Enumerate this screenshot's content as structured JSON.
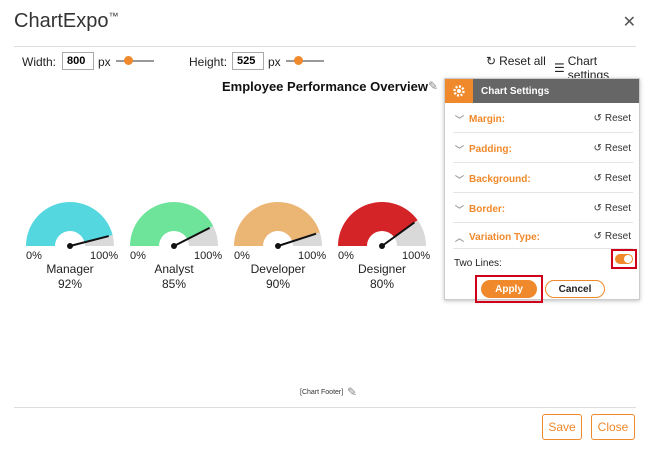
{
  "app": {
    "title": "ChartExpo",
    "trademark": "™"
  },
  "toolbar": {
    "width_label": "Width:",
    "width_value": "800",
    "width_unit": "px",
    "height_label": "Height:",
    "height_value": "525",
    "height_unit": "px",
    "reset_all": "Reset all",
    "chart_settings": "Chart settings"
  },
  "chart": {
    "title": "Employee Performance Overview",
    "footer": "[Chart Footer]",
    "min_label": "0%",
    "max_label": "100%"
  },
  "chart_data": {
    "type": "gauge",
    "title": "Employee Performance Overview",
    "range": [
      0,
      100
    ],
    "series": [
      {
        "name": "Manager",
        "value": 92,
        "label": "92%",
        "color": "#55d7e0"
      },
      {
        "name": "Analyst",
        "value": 85,
        "label": "85%",
        "color": "#6ee39a"
      },
      {
        "name": "Developer",
        "value": 90,
        "label": "90%",
        "color": "#ebb574"
      },
      {
        "name": "Designer",
        "value": 80,
        "label": "80%",
        "color": "#d42427"
      }
    ]
  },
  "settings": {
    "header": "Chart Settings",
    "rows": [
      {
        "label": "Margin:",
        "reset": "Reset"
      },
      {
        "label": "Padding:",
        "reset": "Reset"
      },
      {
        "label": "Background:",
        "reset": "Reset"
      },
      {
        "label": "Border:",
        "reset": "Reset"
      },
      {
        "label": "Variation Type:",
        "reset": "Reset"
      }
    ],
    "two_lines_label": "Two Lines:",
    "two_lines_on": true,
    "apply": "Apply",
    "cancel": "Cancel"
  },
  "footer_buttons": {
    "save": "Save",
    "close": "Close"
  },
  "colors": {
    "accent": "#f0892b",
    "highlight": "#d0021b",
    "track": "#d9d9d9"
  }
}
